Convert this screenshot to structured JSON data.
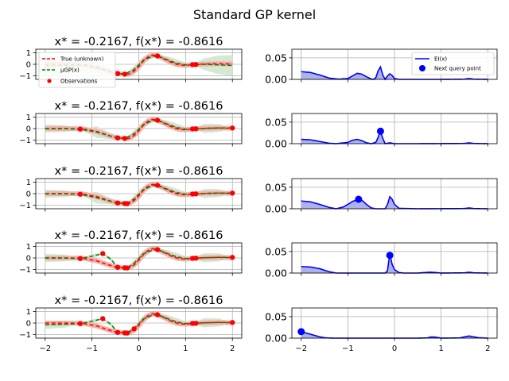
{
  "chart_data": {
    "type": "line",
    "title": "Standard GP kernel",
    "colors": {
      "true_function": "#ff0000",
      "gp_mean": "#008000",
      "gp_band": "#cfe6cf",
      "true_band": "#f2b0ab",
      "observations": "#ff0000",
      "ei": "#0000ff",
      "ei_fill": "#aeb2ec",
      "next_point": "#0000ff",
      "grid": "#b0b0b0"
    },
    "left_legend": {
      "position": "upper-left",
      "entries": [
        "True (unknown)",
        "μGP(x)",
        "Observations"
      ]
    },
    "right_legend": {
      "position": "upper-right",
      "entries": [
        "EI(x)",
        "Next query point"
      ]
    },
    "left_axes": {
      "xlim": [
        -2.2,
        2.2
      ],
      "ylim": [
        -1.3,
        1.3
      ],
      "xticks": [
        -2,
        -1,
        0,
        1,
        2
      ],
      "yticks": [
        -1,
        0,
        1
      ],
      "grid": true
    },
    "right_axes": {
      "xlim": [
        -2.2,
        2.2
      ],
      "ylim": [
        0,
        0.07
      ],
      "xticks": [
        -2,
        -1,
        0,
        1,
        2
      ],
      "yticks": [
        0.0,
        0.05
      ],
      "ytick_labels": [
        "0.00",
        "0.05"
      ],
      "grid": true
    },
    "true_function": {
      "x": [
        -2.0,
        -1.6,
        -1.2,
        -0.9,
        -0.6,
        -0.45,
        -0.3,
        -0.2167,
        -0.1,
        0.0,
        0.1,
        0.2,
        0.3,
        0.4,
        0.55,
        0.7,
        0.85,
        1.0,
        1.15,
        1.4,
        1.7,
        2.0
      ],
      "y": [
        0.0,
        0.0,
        -0.02,
        -0.25,
        -0.65,
        -0.8,
        -0.85,
        -0.8616,
        -0.6,
        -0.2,
        0.3,
        0.65,
        0.8,
        0.72,
        0.45,
        0.15,
        -0.05,
        -0.1,
        -0.03,
        0.02,
        0.05,
        0.03
      ]
    },
    "rows": [
      {
        "title": "x* = -0.2167, f(x*) = -0.8616",
        "observations": {
          "x": [
            -0.45,
            -0.3,
            0.4,
            1.15,
            1.22
          ],
          "y": [
            -0.8,
            -0.85,
            0.72,
            -0.03,
            -0.02
          ]
        },
        "gp_mean": {
          "x": [
            -2.0,
            -1.6,
            -1.2,
            -0.9,
            -0.6,
            -0.45,
            -0.3,
            -0.1,
            0.1,
            0.3,
            0.4,
            0.6,
            0.8,
            1.0,
            1.15,
            1.4,
            1.7,
            2.0
          ],
          "y": [
            -0.15,
            -0.12,
            -0.05,
            -0.3,
            -0.65,
            -0.8,
            -0.85,
            -0.45,
            0.35,
            0.7,
            0.72,
            0.4,
            0.1,
            -0.05,
            -0.03,
            0.0,
            -0.05,
            -0.1
          ]
        },
        "gp_std": [
          0.9,
          0.7,
          0.6,
          0.5,
          0.25,
          0.02,
          0.02,
          0.3,
          0.3,
          0.15,
          0.02,
          0.3,
          0.35,
          0.2,
          0.02,
          0.5,
          0.8,
          0.9
        ],
        "ei": {
          "x": [
            -2.0,
            -1.8,
            -1.6,
            -1.4,
            -1.2,
            -1.0,
            -0.9,
            -0.8,
            -0.7,
            -0.6,
            -0.5,
            -0.45,
            -0.4,
            -0.35,
            -0.3,
            -0.25,
            -0.2,
            -0.15,
            -0.1,
            -0.05,
            0.0,
            0.1,
            0.2,
            0.5,
            1.0,
            1.5,
            1.6,
            1.7,
            2.0
          ],
          "y": [
            0.018,
            0.016,
            0.01,
            0.003,
            0.0005,
            0.002,
            0.008,
            0.014,
            0.012,
            0.006,
            0.001,
            0.0,
            0.004,
            0.02,
            0.029,
            0.01,
            0.0,
            0.008,
            0.013,
            0.009,
            0.002,
            0.0,
            0.0,
            0.0,
            0.0,
            0.0005,
            0.002,
            0.0005,
            0.0
          ]
        },
        "next_point": null
      },
      {
        "title": "x* = -0.2167, f(x*) = -0.8616",
        "observations": {
          "x": [
            -1.25,
            -0.45,
            -0.3,
            0.4,
            1.15,
            1.22,
            2.0
          ],
          "y": [
            -0.05,
            -0.8,
            -0.85,
            0.72,
            -0.03,
            -0.02,
            0.05
          ]
        },
        "gp_mean": {
          "x": [
            -2.0,
            -1.6,
            -1.25,
            -0.9,
            -0.6,
            -0.45,
            -0.3,
            -0.1,
            0.1,
            0.3,
            0.4,
            0.6,
            0.8,
            1.0,
            1.15,
            1.4,
            1.7,
            2.0
          ],
          "y": [
            0.0,
            0.0,
            -0.05,
            -0.3,
            -0.65,
            -0.8,
            -0.85,
            -0.45,
            0.35,
            0.7,
            0.72,
            0.4,
            0.1,
            -0.05,
            -0.03,
            0.02,
            0.05,
            0.05
          ]
        },
        "gp_std": [
          0.35,
          0.3,
          0.02,
          0.5,
          0.25,
          0.02,
          0.02,
          0.3,
          0.3,
          0.15,
          0.02,
          0.3,
          0.35,
          0.2,
          0.02,
          0.4,
          0.35,
          0.02
        ],
        "ei": {
          "x": [
            -2.0,
            -1.8,
            -1.6,
            -1.4,
            -1.25,
            -1.0,
            -0.9,
            -0.8,
            -0.7,
            -0.6,
            -0.5,
            -0.4,
            -0.35,
            -0.3,
            -0.25,
            -0.2,
            -0.15,
            -0.1,
            -0.05,
            0.0,
            0.5,
            1.5,
            1.6,
            1.7,
            2.0
          ],
          "y": [
            0.01,
            0.009,
            0.005,
            0.001,
            0.0,
            0.003,
            0.008,
            0.01,
            0.007,
            0.002,
            0.0,
            0.003,
            0.015,
            0.029,
            0.012,
            0.0,
            0.001,
            0.002,
            0.001,
            0.0,
            0.0,
            0.0005,
            0.002,
            0.0005,
            0.0
          ]
        },
        "next_point": {
          "x": -0.3,
          "y": 0.029
        }
      },
      {
        "title": "x* = -0.2167, f(x*) = -0.8616",
        "observations": {
          "x": [
            -1.25,
            -0.45,
            -0.3,
            -0.25,
            0.4,
            1.15,
            1.22,
            2.0
          ],
          "y": [
            -0.05,
            -0.8,
            -0.85,
            -0.86,
            0.72,
            -0.03,
            -0.02,
            0.05
          ]
        },
        "gp_mean": {
          "x": [
            -2.0,
            -1.6,
            -1.25,
            -0.9,
            -0.6,
            -0.45,
            -0.3,
            -0.25,
            -0.1,
            0.1,
            0.3,
            0.4,
            0.6,
            0.8,
            1.0,
            1.15,
            1.4,
            1.7,
            2.0
          ],
          "y": [
            0.0,
            0.0,
            -0.05,
            -0.35,
            -0.65,
            -0.8,
            -0.85,
            -0.86,
            -0.45,
            0.35,
            0.7,
            0.72,
            0.4,
            0.1,
            -0.05,
            -0.03,
            0.02,
            0.05,
            0.05
          ]
        },
        "gp_std": [
          0.35,
          0.3,
          0.02,
          0.5,
          0.25,
          0.02,
          0.02,
          0.02,
          0.3,
          0.3,
          0.15,
          0.02,
          0.3,
          0.35,
          0.2,
          0.02,
          0.4,
          0.35,
          0.02
        ],
        "ei": {
          "x": [
            -2.0,
            -1.8,
            -1.6,
            -1.4,
            -1.25,
            -1.1,
            -1.0,
            -0.9,
            -0.8,
            -0.75,
            -0.7,
            -0.6,
            -0.5,
            -0.4,
            -0.3,
            -0.2,
            -0.15,
            -0.1,
            -0.05,
            0.0,
            0.1,
            0.5,
            1.5,
            1.6,
            1.7,
            2.0
          ],
          "y": [
            0.018,
            0.016,
            0.01,
            0.003,
            0.0,
            0.004,
            0.01,
            0.017,
            0.021,
            0.022,
            0.02,
            0.01,
            0.002,
            0.0,
            0.0,
            0.0,
            0.01,
            0.028,
            0.022,
            0.01,
            0.001,
            0.0,
            0.0005,
            0.002,
            0.0005,
            0.0
          ]
        },
        "next_point": {
          "x": -0.77,
          "y": 0.022
        }
      },
      {
        "title": "x* = -0.2167, f(x*) = -0.8616",
        "observations": {
          "x": [
            -1.25,
            -0.77,
            -0.45,
            -0.3,
            -0.25,
            0.4,
            1.15,
            1.22,
            2.0
          ],
          "y": [
            -0.05,
            0.38,
            -0.8,
            -0.85,
            -0.86,
            0.72,
            -0.03,
            -0.02,
            0.05
          ]
        },
        "gp_mean": {
          "x": [
            -2.0,
            -1.6,
            -1.25,
            -1.0,
            -0.77,
            -0.6,
            -0.45,
            -0.3,
            -0.25,
            -0.1,
            0.1,
            0.3,
            0.4,
            0.6,
            0.8,
            1.0,
            1.15,
            1.4,
            1.7,
            2.0
          ],
          "y": [
            0.0,
            0.0,
            -0.05,
            0.15,
            0.38,
            -0.1,
            -0.8,
            -0.85,
            -0.86,
            -0.45,
            0.35,
            0.7,
            0.72,
            0.4,
            0.1,
            -0.05,
            -0.03,
            0.02,
            0.05,
            0.05
          ]
        },
        "gp_std": [
          0.35,
          0.3,
          0.02,
          0.2,
          0.02,
          0.2,
          0.02,
          0.02,
          0.02,
          0.3,
          0.3,
          0.15,
          0.02,
          0.3,
          0.35,
          0.2,
          0.02,
          0.4,
          0.35,
          0.02
        ],
        "ei": {
          "x": [
            -2.0,
            -1.8,
            -1.6,
            -1.4,
            -1.25,
            -1.0,
            -0.5,
            -0.2,
            -0.15,
            -0.12,
            -0.1,
            -0.08,
            -0.05,
            0.0,
            0.1,
            0.2,
            0.5,
            0.75,
            0.85,
            1.0,
            1.5,
            1.6,
            1.7,
            2.0
          ],
          "y": [
            0.015,
            0.014,
            0.01,
            0.003,
            0.0,
            0.0,
            0.0,
            0.0,
            0.005,
            0.03,
            0.041,
            0.035,
            0.02,
            0.008,
            0.001,
            0.0,
            0.0,
            0.002,
            0.0015,
            0.0,
            0.0005,
            0.002,
            0.0005,
            0.0
          ]
        },
        "next_point": {
          "x": -0.1,
          "y": 0.041
        }
      },
      {
        "title": "x* = -0.2167, f(x*) = -0.8616",
        "observations": {
          "x": [
            -1.25,
            -0.77,
            -0.45,
            -0.3,
            -0.25,
            -0.1,
            0.4,
            1.15,
            1.22,
            2.0
          ],
          "y": [
            -0.05,
            0.38,
            -0.8,
            -0.85,
            -0.86,
            -0.5,
            0.72,
            -0.03,
            -0.02,
            0.05
          ]
        },
        "gp_mean": {
          "x": [
            -2.0,
            -1.6,
            -1.25,
            -1.0,
            -0.77,
            -0.6,
            -0.45,
            -0.3,
            -0.25,
            -0.1,
            0.1,
            0.3,
            0.4,
            0.6,
            0.8,
            1.0,
            1.15,
            1.4,
            1.7,
            2.0
          ],
          "y": [
            -0.15,
            -0.1,
            -0.05,
            0.15,
            0.38,
            -0.1,
            -0.8,
            -0.85,
            -0.86,
            -0.5,
            0.35,
            0.7,
            0.72,
            0.4,
            0.1,
            -0.05,
            -0.03,
            0.02,
            0.05,
            0.05
          ]
        },
        "gp_std": [
          0.35,
          0.3,
          0.02,
          0.2,
          0.02,
          0.2,
          0.02,
          0.02,
          0.02,
          0.02,
          0.3,
          0.15,
          0.02,
          0.3,
          0.35,
          0.2,
          0.02,
          0.4,
          0.35,
          0.02
        ],
        "ei": {
          "x": [
            -2.0,
            -1.9,
            -1.8,
            -1.7,
            -1.6,
            -1.5,
            -1.4,
            -1.3,
            -1.25,
            -0.5,
            0.5,
            0.7,
            0.8,
            0.9,
            1.0,
            1.4,
            1.5,
            1.6,
            1.7,
            1.8,
            2.0
          ],
          "y": [
            0.015,
            0.012,
            0.009,
            0.006,
            0.003,
            0.001,
            0.0003,
            0.0,
            0.0,
            0.0,
            0.0,
            0.0005,
            0.003,
            0.002,
            0.0,
            0.0005,
            0.003,
            0.005,
            0.003,
            0.001,
            0.0
          ]
        },
        "next_point": {
          "x": -2.0,
          "y": 0.015
        }
      }
    ]
  }
}
